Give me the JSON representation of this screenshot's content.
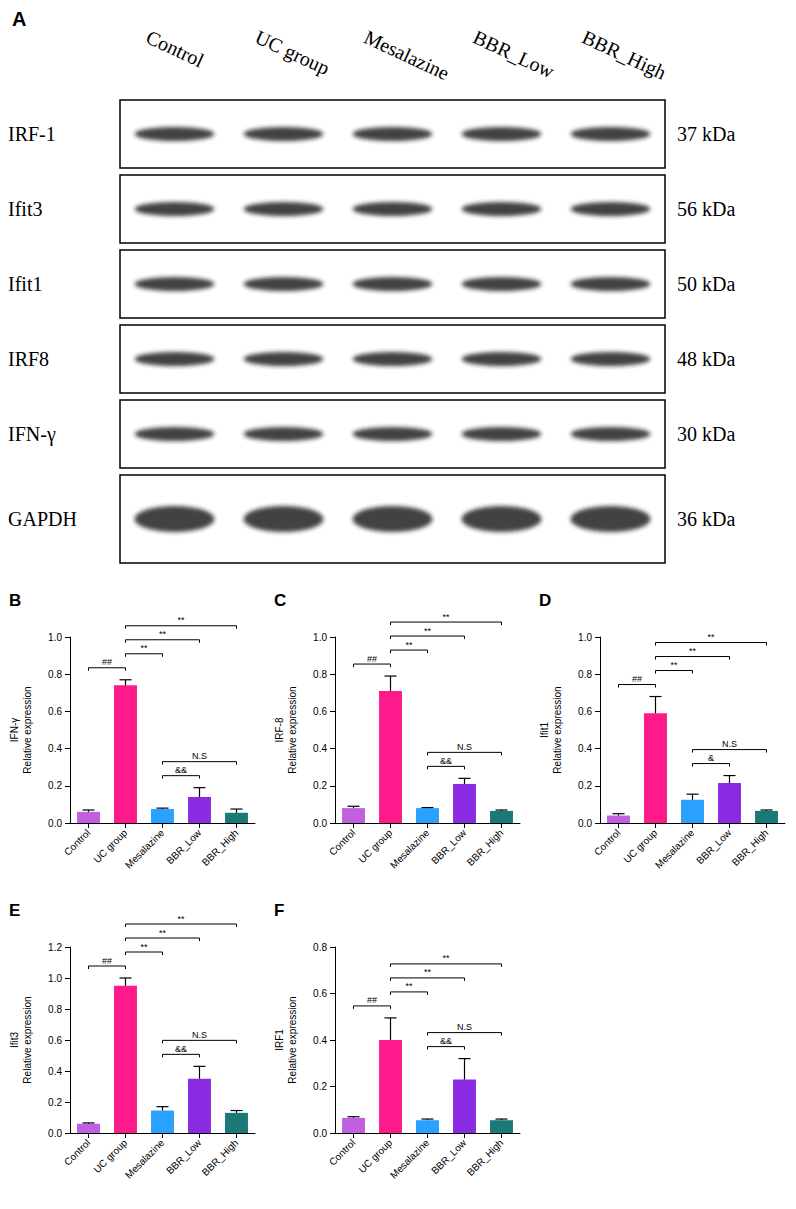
{
  "blot": {
    "panel": "A",
    "lanes": [
      "Control",
      "UC group",
      "Mesalazine",
      "BBR_Low",
      "BBR_High"
    ],
    "rows": [
      {
        "label": "IRF-1",
        "size": "37 kDa"
      },
      {
        "label": "Ifit3",
        "size": "56 kDa"
      },
      {
        "label": "Ifit1",
        "size": "50 kDa"
      },
      {
        "label": "IRF8",
        "size": "48 kDa"
      },
      {
        "label": "IFN-γ",
        "size": "30 kDa"
      },
      {
        "label": "GAPDH",
        "size": "36 kDa"
      }
    ]
  },
  "chart_data": [
    {
      "type": "bar",
      "title": "B",
      "ylabel": "IFN-γ\nRelative expression",
      "categories": [
        "Control",
        "UC group",
        "Mesalazine",
        "BBR_Low",
        "BBR_High"
      ],
      "values": [
        0.06,
        0.74,
        0.075,
        0.14,
        0.055
      ],
      "errors": [
        0.01,
        0.03,
        0.005,
        0.05,
        0.02
      ],
      "colors": [
        "#c060e0",
        "#ff1a8c",
        "#2aa0ff",
        "#8a2be2",
        "#1a7a78"
      ],
      "ylim": [
        0,
        1.0
      ],
      "yticks": [
        {
          "value": 0,
          "label": "0.0"
        },
        0.2,
        0.4,
        0.6,
        0.8,
        {
          "value": 1.0,
          "label": "1.0"
        }
      ],
      "comparisons": [
        {
          "from": "Control",
          "to": "UC group",
          "label": "##"
        },
        {
          "from": "UC group",
          "to": "Mesalazine",
          "label": "**"
        },
        {
          "from": "UC group",
          "to": "BBR_Low",
          "label": "**"
        },
        {
          "from": "UC group",
          "to": "BBR_High",
          "label": "**"
        },
        {
          "from": "Mesalazine",
          "to": "BBR_Low",
          "label": "&&"
        },
        {
          "from": "Mesalazine",
          "to": "BBR_High",
          "label": "N.S"
        }
      ]
    },
    {
      "type": "bar",
      "title": "C",
      "ylabel": "IRF-8\nRelative expression",
      "categories": [
        "Control",
        "UC group",
        "Mesalazine",
        "BBR_Low",
        "BBR_High"
      ],
      "values": [
        0.08,
        0.71,
        0.08,
        0.21,
        0.065
      ],
      "errors": [
        0.01,
        0.08,
        0.003,
        0.03,
        0.005
      ],
      "colors": [
        "#c060e0",
        "#ff1a8c",
        "#2aa0ff",
        "#8a2be2",
        "#1a7a78"
      ],
      "ylim": [
        0,
        1.0
      ],
      "yticks": [
        {
          "value": 0,
          "label": "0.0"
        },
        0.2,
        0.4,
        0.6,
        0.8,
        {
          "value": 1.0,
          "label": "1.0"
        }
      ],
      "comparisons": [
        {
          "from": "Control",
          "to": "UC group",
          "label": "##"
        },
        {
          "from": "UC group",
          "to": "Mesalazine",
          "label": "**"
        },
        {
          "from": "UC group",
          "to": "BBR_Low",
          "label": "**"
        },
        {
          "from": "UC group",
          "to": "BBR_High",
          "label": "**"
        },
        {
          "from": "Mesalazine",
          "to": "BBR_Low",
          "label": "&&"
        },
        {
          "from": "Mesalazine",
          "to": "BBR_High",
          "label": "N.S"
        }
      ]
    },
    {
      "type": "bar",
      "title": "D",
      "ylabel": "Ifit1\nRelative expression",
      "categories": [
        "Control",
        "UC group",
        "Mesalazine",
        "BBR_Low",
        "BBR_High"
      ],
      "values": [
        0.04,
        0.59,
        0.125,
        0.215,
        0.065
      ],
      "errors": [
        0.01,
        0.09,
        0.03,
        0.04,
        0.005
      ],
      "colors": [
        "#c060e0",
        "#ff1a8c",
        "#2aa0ff",
        "#8a2be2",
        "#1a7a78"
      ],
      "ylim": [
        0,
        1.0
      ],
      "yticks": [
        {
          "value": 0,
          "label": "0.0"
        },
        0.2,
        0.4,
        0.6,
        0.8,
        {
          "value": 1.0,
          "label": "1.0"
        }
      ],
      "comparisons": [
        {
          "from": "Control",
          "to": "UC group",
          "label": "##"
        },
        {
          "from": "UC group",
          "to": "Mesalazine",
          "label": "**"
        },
        {
          "from": "UC group",
          "to": "BBR_Low",
          "label": "**"
        },
        {
          "from": "UC group",
          "to": "BBR_High",
          "label": "**"
        },
        {
          "from": "Mesalazine",
          "to": "BBR_Low",
          "label": "&"
        },
        {
          "from": "Mesalazine",
          "to": "BBR_High",
          "label": "N.S"
        }
      ]
    },
    {
      "type": "bar",
      "title": "E",
      "ylabel": "Ifit3\nRelative expression",
      "categories": [
        "Control",
        "UC group",
        "Mesalazine",
        "BBR_Low",
        "BBR_High"
      ],
      "values": [
        0.06,
        0.95,
        0.145,
        0.35,
        0.13
      ],
      "errors": [
        0.005,
        0.05,
        0.025,
        0.08,
        0.015
      ],
      "colors": [
        "#c060e0",
        "#ff1a8c",
        "#2aa0ff",
        "#8a2be2",
        "#1a7a78"
      ],
      "ylim": [
        0,
        1.2
      ],
      "yticks": [
        {
          "value": 0,
          "label": "0.0"
        },
        0.2,
        0.4,
        0.6,
        0.8,
        {
          "value": 1.0,
          "label": "1.0"
        },
        1.2
      ],
      "comparisons": [
        {
          "from": "Control",
          "to": "UC group",
          "label": "##"
        },
        {
          "from": "UC group",
          "to": "Mesalazine",
          "label": "**"
        },
        {
          "from": "UC group",
          "to": "BBR_Low",
          "label": "**"
        },
        {
          "from": "UC group",
          "to": "BBR_High",
          "label": "**"
        },
        {
          "from": "Mesalazine",
          "to": "BBR_Low",
          "label": "&&"
        },
        {
          "from": "Mesalazine",
          "to": "BBR_High",
          "label": "N.S"
        }
      ]
    },
    {
      "type": "bar",
      "title": "F",
      "ylabel": "IRF1\nRelative expression",
      "categories": [
        "Control",
        "UC group",
        "Mesalazine",
        "BBR_Low",
        "BBR_High"
      ],
      "values": [
        0.065,
        0.4,
        0.055,
        0.23,
        0.055
      ],
      "errors": [
        0.005,
        0.095,
        0.005,
        0.09,
        0.005
      ],
      "colors": [
        "#c060e0",
        "#ff1a8c",
        "#2aa0ff",
        "#8a2be2",
        "#1a7a78"
      ],
      "ylim": [
        0,
        0.8
      ],
      "yticks": [
        {
          "value": 0,
          "label": "0.0"
        },
        0.2,
        0.4,
        0.6,
        0.8
      ],
      "comparisons": [
        {
          "from": "Control",
          "to": "UC group",
          "label": "##"
        },
        {
          "from": "UC group",
          "to": "Mesalazine",
          "label": "**"
        },
        {
          "from": "UC group",
          "to": "BBR_Low",
          "label": "**"
        },
        {
          "from": "UC group",
          "to": "BBR_High",
          "label": "**"
        },
        {
          "from": "Mesalazine",
          "to": "BBR_Low",
          "label": "&&"
        },
        {
          "from": "Mesalazine",
          "to": "BBR_High",
          "label": "N.S"
        }
      ]
    }
  ]
}
